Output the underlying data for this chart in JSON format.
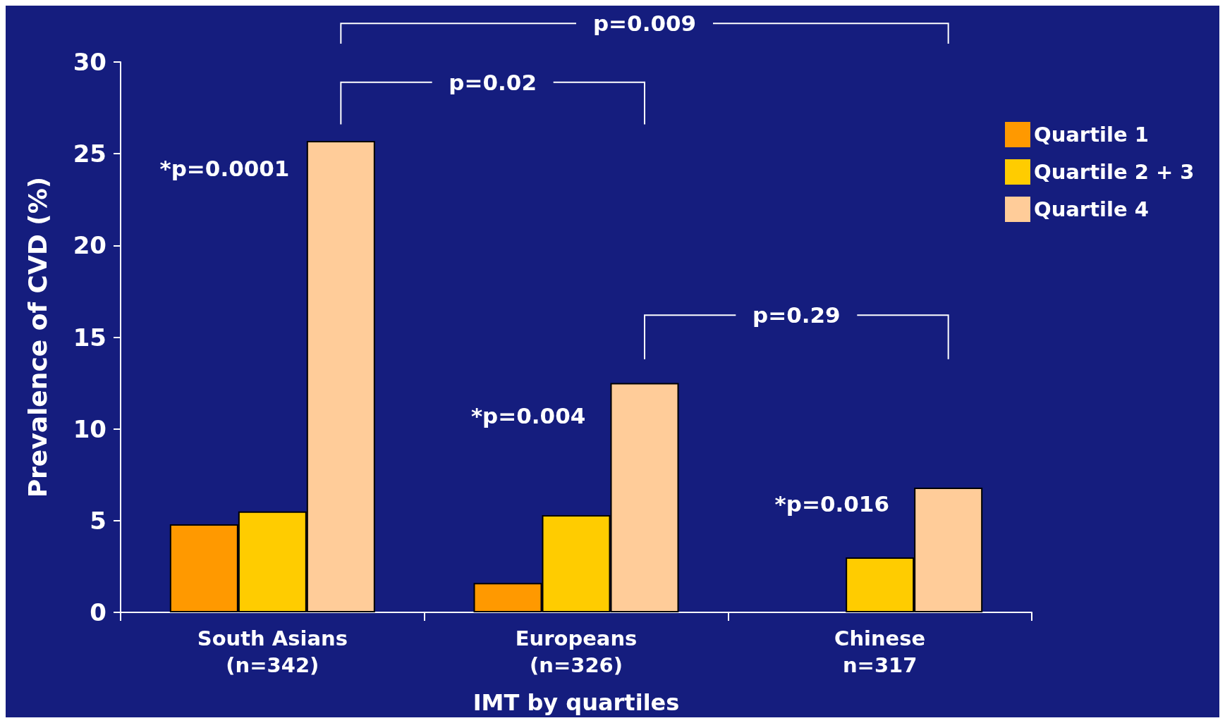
{
  "chart_data": {
    "type": "bar",
    "categories": [
      "South Asians\n(n=342)",
      "Europeans\n(n=326)",
      "Chinese\nn=317"
    ],
    "series": [
      {
        "name": "Quartile 1",
        "color": "#ff9900",
        "values": [
          4.8,
          1.6,
          null
        ]
      },
      {
        "name": "Quartile 2 + 3",
        "color": "#ffcc00",
        "values": [
          5.5,
          5.3,
          3.0
        ]
      },
      {
        "name": "Quartile 4",
        "color": "#ffcc99",
        "values": [
          25.7,
          12.5,
          6.8
        ]
      }
    ],
    "xlabel": "IMT by quartiles",
    "ylabel": "Prevalence of CVD (%)",
    "ylim": [
      0,
      30
    ],
    "yticks": [
      0,
      5,
      10,
      15,
      20,
      25,
      30
    ],
    "grid": false,
    "legend": "top right",
    "annotations": [
      "p=0.009",
      "p=0.02",
      "p=0.29",
      "*p=0.0001",
      "*p=0.004",
      "*p=0.016"
    ]
  }
}
